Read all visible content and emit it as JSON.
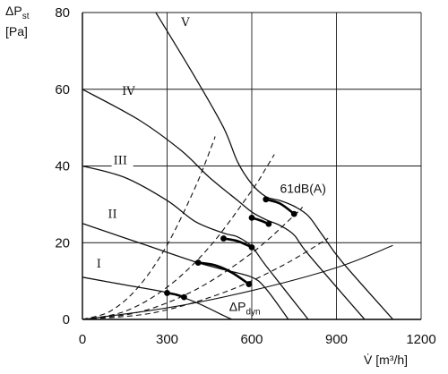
{
  "chart_data": {
    "type": "line",
    "ylabel_line1": "ΔP",
    "ylabel_sub": "st",
    "ylabel_line2": "[Pa]",
    "xlabel": "V̇ [m³/h]",
    "xlim": [
      0,
      1200
    ],
    "ylim": [
      0,
      80
    ],
    "xticks": [
      0,
      300,
      600,
      900,
      1200
    ],
    "yticks": [
      0,
      20,
      40,
      60,
      80
    ],
    "grid": true,
    "series": [
      {
        "name": "I",
        "x": [
          0,
          150,
          300,
          400,
          500,
          530
        ],
        "y": [
          11,
          9,
          7,
          4.5,
          1,
          0
        ]
      },
      {
        "name": "II",
        "x": [
          0,
          200,
          400,
          500,
          600,
          650,
          730
        ],
        "y": [
          25,
          20,
          15,
          13,
          11,
          8,
          0
        ]
      },
      {
        "name": "III",
        "x": [
          0,
          150,
          300,
          400,
          500,
          550,
          600,
          650,
          800
        ],
        "y": [
          40,
          37,
          31,
          25.5,
          22.5,
          21.5,
          19,
          14,
          0
        ]
      },
      {
        "name": "IV",
        "x": [
          0,
          200,
          350,
          450,
          550,
          600,
          650,
          700,
          750,
          800,
          1000
        ],
        "y": [
          60,
          52,
          44,
          37,
          31,
          28,
          26,
          24.5,
          22,
          17,
          0
        ]
      },
      {
        "name": "V",
        "x": [
          260,
          400,
          500,
          550,
          600,
          650,
          700,
          750,
          800,
          850,
          920,
          1100
        ],
        "y": [
          80,
          63,
          50,
          41,
          35.3,
          32,
          31,
          29.5,
          27,
          22,
          15,
          0
        ]
      }
    ],
    "system_curves": [
      {
        "x": [
          0,
          100,
          200,
          300,
          400,
          460,
          470
        ],
        "y": [
          0,
          2.2,
          8.6,
          19.4,
          34.5,
          45.6,
          47.7
        ]
      },
      {
        "x": [
          0,
          150,
          300,
          450,
          600,
          650,
          680
        ],
        "y": [
          0,
          2.1,
          8.4,
          18.9,
          33.6,
          39.4,
          43
        ]
      },
      {
        "x": [
          0,
          200,
          400,
          600,
          750,
          780
        ],
        "y": [
          0,
          1.9,
          7.7,
          17.3,
          27.1,
          29.3
        ]
      },
      {
        "x": [
          0,
          250,
          500,
          700,
          850,
          870
        ],
        "y": [
          0,
          1.7,
          7,
          13.7,
          20.2,
          21.2
        ]
      }
    ],
    "dynamic_pressure": {
      "name": "ΔP",
      "sub": "dyn",
      "x": [
        0,
        300,
        600,
        900,
        1100
      ],
      "y": [
        0,
        3,
        7.5,
        13.5,
        19.3
      ]
    },
    "noise_isoline": {
      "label": "61dB(A)",
      "segments": [
        [
          [
            300,
            6.9
          ],
          [
            330,
            6.5
          ],
          [
            360,
            5.8
          ]
        ],
        [
          [
            410,
            14.8
          ],
          [
            470,
            14.1
          ],
          [
            530,
            12.2
          ],
          [
            590,
            9.2
          ]
        ],
        [
          [
            500,
            21.1
          ],
          [
            550,
            20.4
          ],
          [
            600,
            18.8
          ]
        ],
        [
          [
            600,
            26.5
          ],
          [
            630,
            25.8
          ],
          [
            660,
            24.9
          ]
        ],
        [
          [
            650,
            31.3
          ],
          [
            700,
            30.2
          ],
          [
            750,
            27.5
          ]
        ]
      ],
      "points": [
        [
          300,
          6.9
        ],
        [
          360,
          5.8
        ],
        [
          410,
          14.8
        ],
        [
          590,
          9.2
        ],
        [
          500,
          21.1
        ],
        [
          600,
          18.8
        ],
        [
          600,
          26.5
        ],
        [
          660,
          24.9
        ],
        [
          650,
          31.3
        ],
        [
          750,
          27.5
        ]
      ]
    }
  }
}
